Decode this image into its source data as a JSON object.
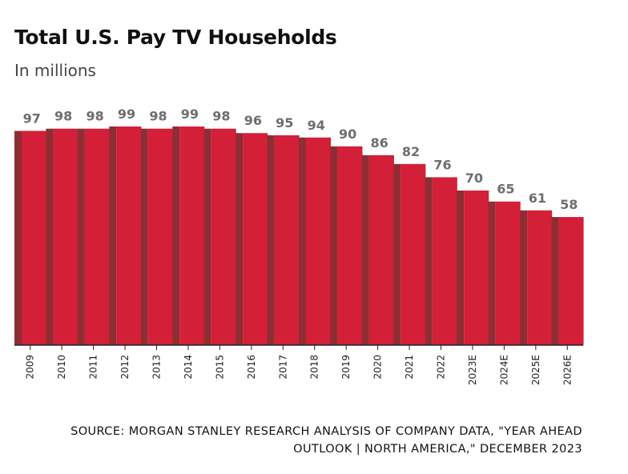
{
  "header": {
    "title": "Total U.S. Pay TV Households",
    "subtitle": "In millions"
  },
  "footer": {
    "source": "SOURCE: MORGAN STANLEY RESEARCH ANALYSIS OF COMPANY DATA, \"YEAR AHEAD OUTLOOK | NORTH AMERICA,\" DECEMBER 2023"
  },
  "colors": {
    "bar_face": "#d31f37",
    "bar_side": "#8f2d34",
    "value_label": "#6e6e6e",
    "axis": "#222222"
  },
  "chart_data": {
    "type": "bar",
    "title": "Total U.S. Pay TV Households",
    "subtitle": "In millions",
    "xlabel": "",
    "ylabel": "",
    "categories": [
      "2009",
      "2010",
      "2011",
      "2012",
      "2013",
      "2014",
      "2015",
      "2016",
      "2017",
      "2018",
      "2019",
      "2020",
      "2021",
      "2022",
      "2023E",
      "2024E",
      "2025E",
      "2026E"
    ],
    "values": [
      97,
      98,
      98,
      99,
      98,
      99,
      98,
      96,
      95,
      94,
      90,
      86,
      82,
      76,
      70,
      65,
      61,
      58
    ],
    "ylim": [
      0,
      100
    ],
    "grid": false,
    "data_labels": true,
    "tick_label_orientation": "vertical"
  }
}
